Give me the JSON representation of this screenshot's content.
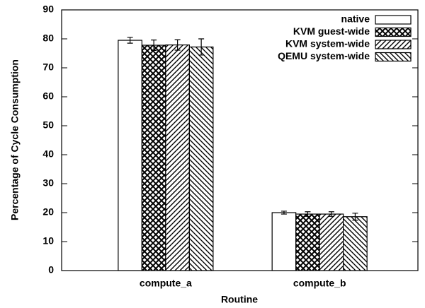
{
  "chart_data": {
    "type": "bar",
    "xlabel": "Routine",
    "ylabel": "Percentage of Cycle Consumption",
    "categories": [
      "compute_a",
      "compute_b"
    ],
    "series": [
      {
        "name": "native",
        "color": "#000000",
        "pattern": "none",
        "values": [
          79.5,
          20
        ],
        "errors": [
          1,
          0.5
        ]
      },
      {
        "name": "KVM guest-wide",
        "color": "#000000",
        "pattern": "crosshatch",
        "values": [
          77.8,
          19.5
        ],
        "errors": [
          1.8,
          0.8
        ]
      },
      {
        "name": "KVM system-wide",
        "color": "#000000",
        "pattern": "diagonal",
        "values": [
          77.9,
          19.5
        ],
        "errors": [
          1.8,
          0.8
        ]
      },
      {
        "name": "QEMU system-wide",
        "color": "#000000",
        "pattern": "backdiagonal",
        "values": [
          77.2,
          18.6
        ],
        "errors": [
          2.8,
          1.2
        ]
      }
    ],
    "ylim": [
      0,
      90
    ],
    "yticks": [
      0,
      10,
      20,
      30,
      40,
      50,
      60,
      70,
      80,
      90
    ],
    "legend": "top-right"
  }
}
